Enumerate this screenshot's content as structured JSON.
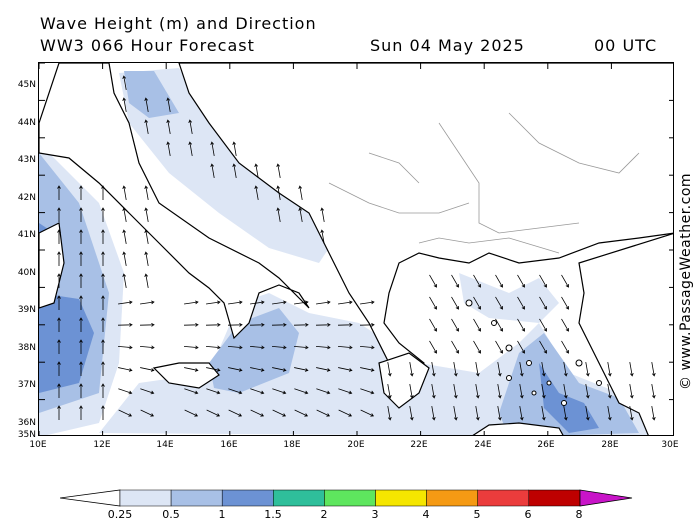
{
  "header": {
    "title_line1": "Wave Height (m) and Direction",
    "title_line2": "WW3 066 Hour Forecast",
    "date": "Sun 04 May 2025",
    "time": "00 UTC"
  },
  "credit": "© www.PassageWeather.com",
  "map": {
    "lat_labels": [
      "45N",
      "44N",
      "43N",
      "42N",
      "41N",
      "40N",
      "39N",
      "38N",
      "37N",
      "36N",
      "35N"
    ],
    "lon_labels": [
      "10E",
      "12E",
      "14E",
      "16E",
      "18E",
      "20E",
      "22E",
      "24E",
      "26E",
      "28E",
      "30E"
    ]
  },
  "legend": {
    "labels": [
      "0.25",
      "0.5",
      "1",
      "1.5",
      "2",
      "3",
      "4",
      "5",
      "6",
      "8"
    ],
    "colors": [
      "#dde6f5",
      "#a8c0e6",
      "#6c92d4",
      "#2fbf9b",
      "#5ee65e",
      "#f5e600",
      "#f59a14",
      "#eb3c3c",
      "#be0000",
      "#c814c8"
    ]
  }
}
